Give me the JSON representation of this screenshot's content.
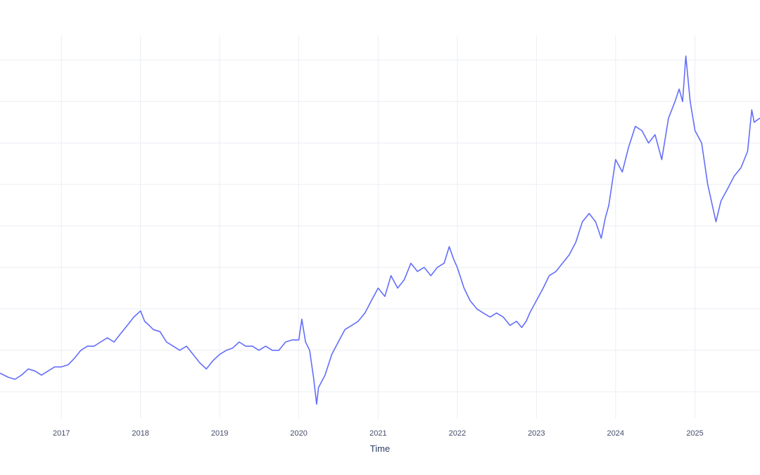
{
  "chart_data": {
    "type": "line",
    "title": "",
    "xlabel": "Time",
    "ylabel": "",
    "x_ticks": [
      "2017",
      "2018",
      "2019",
      "2020",
      "2021",
      "2022",
      "2023",
      "2024",
      "2025"
    ],
    "xlim": [
      "2016-03-24",
      "2025-10-28"
    ],
    "y_gridlines": [
      0,
      1,
      2,
      3,
      4,
      5,
      6,
      7,
      8
    ],
    "ylim": [
      -0.65,
      8.6
    ],
    "grid": true,
    "line_color": "#636efa",
    "series": [
      {
        "x": [
          "2016-03-24",
          "2016-05-01",
          "2016-06-01",
          "2016-07-01",
          "2016-08-01",
          "2016-09-01",
          "2016-10-01",
          "2016-11-01",
          "2016-12-01",
          "2017-01-01",
          "2017-02-01",
          "2017-03-01",
          "2017-04-01",
          "2017-05-01",
          "2017-06-01",
          "2017-07-01",
          "2017-08-01",
          "2017-09-01",
          "2017-10-01",
          "2017-11-01",
          "2017-12-01",
          "2018-01-01",
          "2018-01-20",
          "2018-02-10",
          "2018-03-01",
          "2018-04-01",
          "2018-05-01",
          "2018-06-01",
          "2018-07-01",
          "2018-08-01",
          "2018-09-01",
          "2018-10-01",
          "2018-11-01",
          "2018-12-01",
          "2019-01-01",
          "2019-02-01",
          "2019-03-01",
          "2019-04-01",
          "2019-05-01",
          "2019-06-01",
          "2019-07-01",
          "2019-08-01",
          "2019-09-01",
          "2019-10-01",
          "2019-11-01",
          "2019-12-01",
          "2020-01-01",
          "2020-01-15",
          "2020-02-01",
          "2020-02-20",
          "2020-03-10",
          "2020-03-23",
          "2020-04-01",
          "2020-05-01",
          "2020-06-01",
          "2020-07-01",
          "2020-08-01",
          "2020-09-01",
          "2020-10-01",
          "2020-11-01",
          "2020-12-01",
          "2021-01-01",
          "2021-02-01",
          "2021-03-01",
          "2021-04-01",
          "2021-05-01",
          "2021-06-01",
          "2021-07-01",
          "2021-08-01",
          "2021-09-01",
          "2021-10-01",
          "2021-11-01",
          "2021-11-25",
          "2021-12-15",
          "2022-01-01",
          "2022-02-01",
          "2022-03-01",
          "2022-04-01",
          "2022-05-01",
          "2022-06-01",
          "2022-07-01",
          "2022-08-01",
          "2022-09-01",
          "2022-10-01",
          "2022-10-25",
          "2022-11-15",
          "2022-12-01",
          "2023-01-01",
          "2023-02-01",
          "2023-03-01",
          "2023-04-01",
          "2023-05-01",
          "2023-06-01",
          "2023-07-01",
          "2023-08-01",
          "2023-09-01",
          "2023-10-01",
          "2023-10-27",
          "2023-11-15",
          "2023-12-01",
          "2024-01-01",
          "2024-02-01",
          "2024-03-01",
          "2024-04-01",
          "2024-05-01",
          "2024-06-01",
          "2024-07-01",
          "2024-08-01",
          "2024-09-01",
          "2024-10-01",
          "2024-10-20",
          "2024-11-05",
          "2024-11-20",
          "2024-12-10",
          "2025-01-01",
          "2025-02-01",
          "2025-03-01",
          "2025-04-08",
          "2025-05-01",
          "2025-06-01",
          "2025-07-01",
          "2025-08-01",
          "2025-09-01",
          "2025-09-20",
          "2025-10-01",
          "2025-10-28"
        ],
        "y": [
          0.45,
          0.35,
          0.3,
          0.4,
          0.55,
          0.5,
          0.4,
          0.5,
          0.6,
          0.6,
          0.65,
          0.8,
          1.0,
          1.1,
          1.1,
          1.2,
          1.3,
          1.2,
          1.4,
          1.6,
          1.8,
          1.95,
          1.7,
          1.6,
          1.5,
          1.45,
          1.2,
          1.1,
          1.0,
          1.1,
          0.9,
          0.7,
          0.55,
          0.75,
          0.9,
          1.0,
          1.05,
          1.2,
          1.1,
          1.1,
          1.0,
          1.1,
          1.0,
          1.0,
          1.2,
          1.25,
          1.25,
          1.75,
          1.2,
          1.0,
          0.3,
          -0.3,
          0.1,
          0.4,
          0.9,
          1.2,
          1.5,
          1.6,
          1.7,
          1.9,
          2.2,
          2.5,
          2.3,
          2.8,
          2.5,
          2.7,
          3.1,
          2.9,
          3.0,
          2.8,
          3.0,
          3.1,
          3.5,
          3.2,
          3.0,
          2.5,
          2.2,
          2.0,
          1.9,
          1.8,
          1.9,
          1.8,
          1.6,
          1.7,
          1.55,
          1.7,
          1.9,
          2.2,
          2.5,
          2.8,
          2.9,
          3.1,
          3.3,
          3.6,
          4.1,
          4.3,
          4.1,
          3.7,
          4.2,
          4.5,
          5.6,
          5.3,
          5.9,
          6.4,
          6.3,
          6.0,
          6.2,
          5.6,
          6.6,
          7.0,
          7.3,
          7.0,
          8.1,
          7.0,
          6.3,
          6.0,
          5.0,
          4.1,
          4.6,
          4.9,
          5.2,
          5.4,
          5.8,
          6.8,
          6.5,
          6.6
        ]
      }
    ]
  }
}
